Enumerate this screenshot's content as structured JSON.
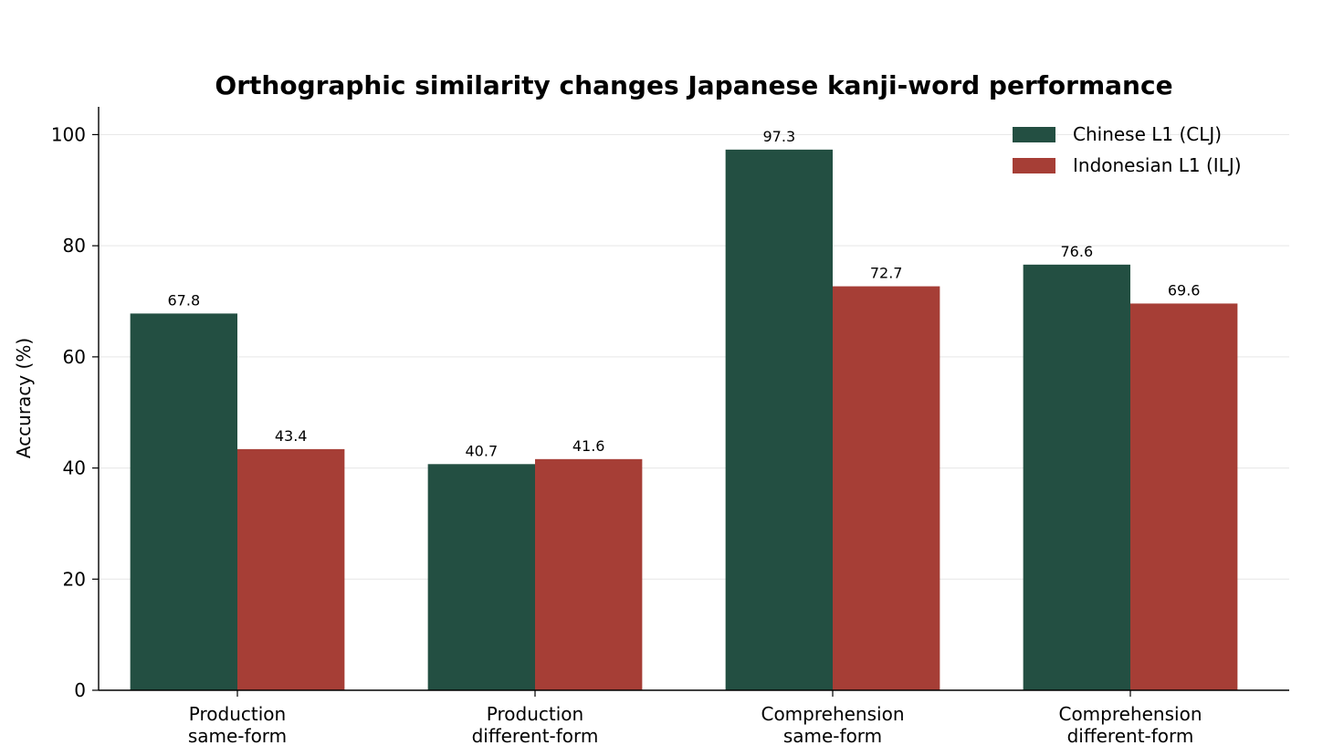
{
  "chart_data": {
    "type": "bar",
    "title": "Orthographic similarity changes Japanese kanji-word performance",
    "ylabel": "Accuracy (%)",
    "xlabel": "",
    "ylim": [
      0,
      105
    ],
    "yticks": [
      0,
      20,
      40,
      60,
      80,
      100
    ],
    "grid": "horizontal",
    "legend_position": "top-right",
    "categories": [
      [
        "Production",
        "same-form"
      ],
      [
        "Production",
        "different-form"
      ],
      [
        "Comprehension",
        "same-form"
      ],
      [
        "Comprehension",
        "different-form"
      ]
    ],
    "series": [
      {
        "name": "Chinese L1 (CLJ)",
        "color": "#234f42",
        "values": [
          67.8,
          40.7,
          97.3,
          76.6
        ],
        "labels": [
          "67.8",
          "40.7",
          "97.3",
          "76.6"
        ]
      },
      {
        "name": "Indonesian L1 (ILJ)",
        "color": "#a63e36",
        "values": [
          43.4,
          41.6,
          72.7,
          69.6
        ],
        "labels": [
          "43.4",
          "41.6",
          "72.7",
          "69.6"
        ]
      }
    ]
  }
}
